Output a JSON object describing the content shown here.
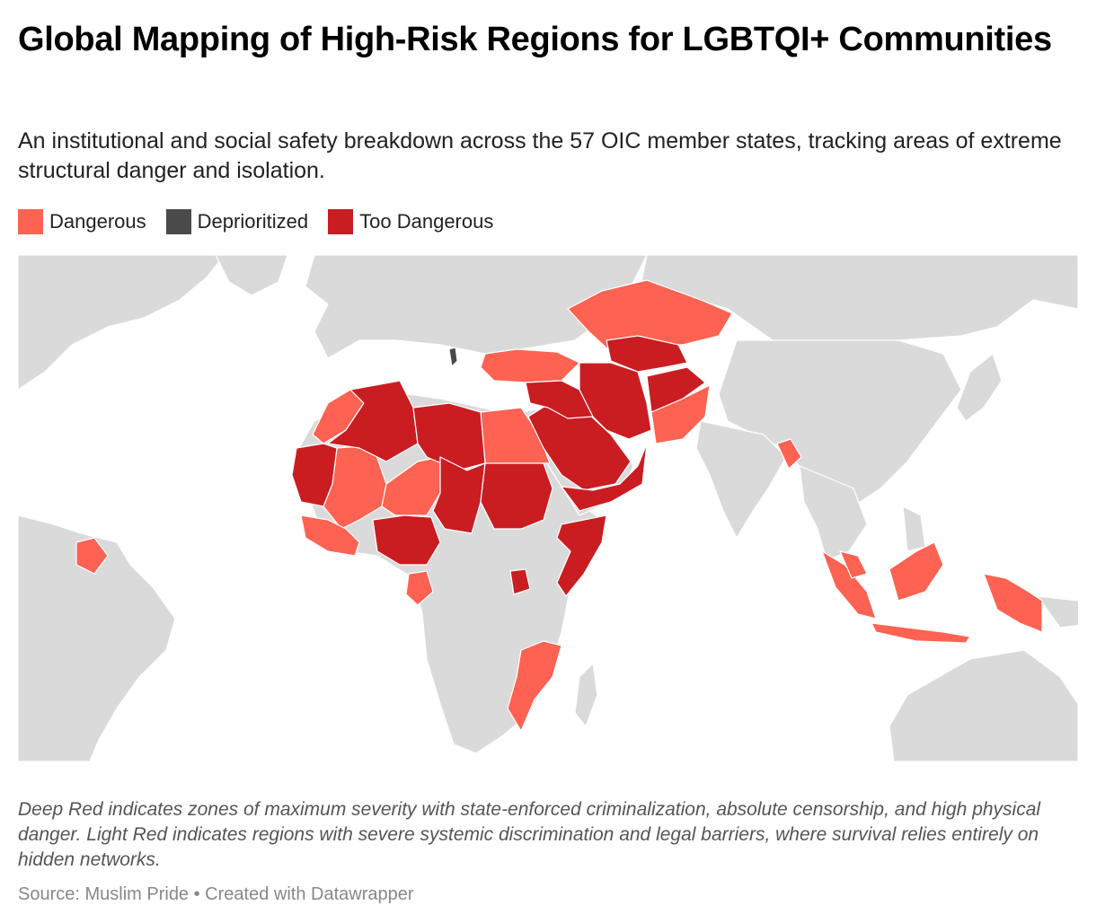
{
  "header": {
    "title": "Global Mapping of High-Risk Regions for LGBTQI+ Communities",
    "subtitle": "An institutional and social safety breakdown across the 57 OIC member states, tracking areas of extreme structural danger and isolation."
  },
  "legend": [
    {
      "label": "Dangerous",
      "color": "#fd6252"
    },
    {
      "label": "Deprioritized",
      "color": "#4a4a4a"
    },
    {
      "label": "Too Dangerous",
      "color": "#c91d22"
    }
  ],
  "map_colors": {
    "land": "#dadada",
    "border": "#ffffff",
    "dangerous": "#fd6252",
    "deprioritized": "#4a4a4a",
    "too_dangerous": "#c91d22"
  },
  "notes": "Deep Red indicates zones of maximum severity with state-enforced criminalization, absolute censorship, and high physical danger. Light Red indicates regions with severe systemic discrimination and legal barriers, where survival relies entirely on hidden networks.",
  "footer": {
    "source": "Source: Muslim Pride • Created with Datawrapper"
  }
}
